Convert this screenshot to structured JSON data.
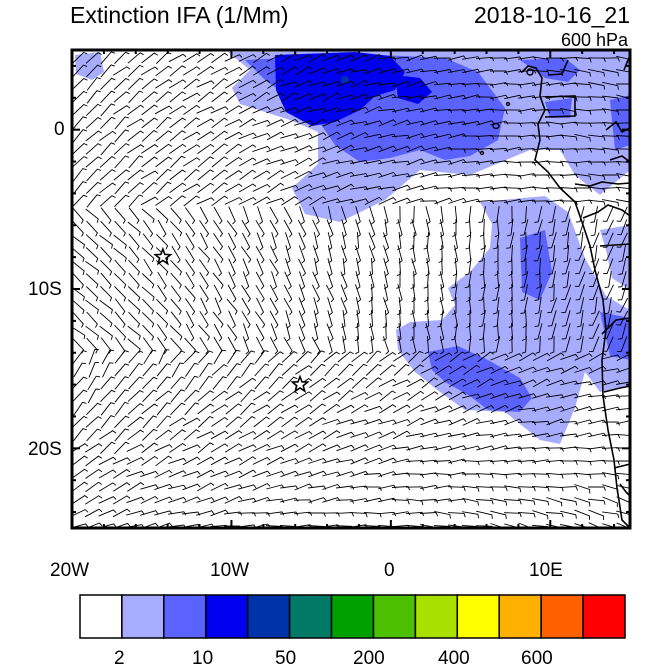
{
  "title": "Extinction IFA (1/Mm)",
  "datetime": "2018-10-16_21",
  "level": "600 hPa",
  "axes": {
    "lon_labels": [
      "20W",
      "10W",
      "0",
      "10E"
    ],
    "lat_labels": [
      "0",
      "10S",
      "20S"
    ],
    "lon_range": [
      -20,
      15
    ],
    "lat_range": [
      -25,
      5
    ]
  },
  "colorbar": {
    "colors": [
      "#ffffff",
      "#a8acff",
      "#5a62ff",
      "#0000f0",
      "#0033aa",
      "#007a66",
      "#00a000",
      "#4cc000",
      "#a8e000",
      "#ffff00",
      "#ffb000",
      "#ff6000",
      "#ff0000"
    ],
    "labels": [
      "2",
      "10",
      "50",
      "200",
      "400",
      "600"
    ]
  },
  "markers": [
    {
      "name": "star-marker",
      "lon": -14.3,
      "lat": -8.0
    },
    {
      "name": "star-marker",
      "lon": -5.7,
      "lat": -16.0
    }
  ],
  "colors": {
    "coast": "#000000",
    "plume_light": "#a8acff",
    "plume_mid": "#5a62ff",
    "plume_dark": "#0000f0"
  }
}
